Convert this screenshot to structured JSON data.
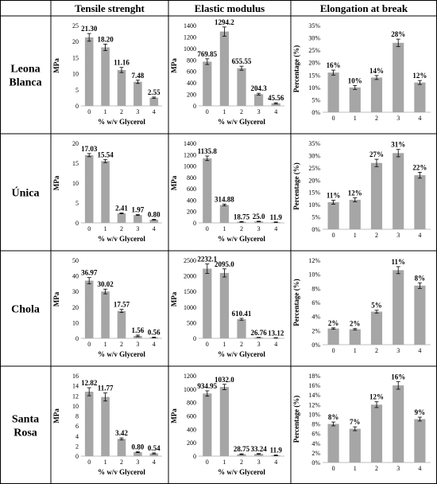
{
  "column_headers": [
    "Tensile strenght",
    "Elastic modulus",
    "Elongation at break"
  ],
  "row_labels": [
    [
      "Leona",
      "Blanca"
    ],
    [
      "Única"
    ],
    [
      "Chola"
    ],
    [
      "Santa",
      "Rosa"
    ]
  ],
  "colors": {
    "bar": "#a6a6a6",
    "border": "#000000"
  },
  "chart_data": [
    {
      "type": "bar",
      "title": "",
      "xlabel": "% w/v Glycerol",
      "ylabel": "MPa",
      "categories": [
        "0",
        "1",
        "2",
        "3",
        "4"
      ],
      "values": [
        21.3,
        18.2,
        11.16,
        7.48,
        2.55
      ],
      "labels": [
        "21.30",
        "18.20",
        "11.16",
        "7.48",
        "2.55"
      ],
      "errors": [
        1.2,
        1.0,
        0.8,
        0.5,
        0.2
      ],
      "ylim": [
        0,
        25
      ],
      "ticks": [
        0,
        5,
        10,
        15,
        20,
        25
      ],
      "tick_labels": [
        "0",
        "5",
        "10",
        "15",
        "20",
        "25"
      ]
    },
    {
      "type": "bar",
      "title": "",
      "xlabel": "% w/v Glycerol",
      "ylabel": "MPa",
      "categories": [
        "0",
        "1",
        "2",
        "3",
        "4"
      ],
      "values": [
        769.85,
        1294.2,
        655.55,
        204.3,
        45.56
      ],
      "labels": [
        "769.85",
        "1294.2",
        "655.55",
        "204.3",
        "45.56"
      ],
      "errors": [
        50,
        80,
        35,
        15,
        10
      ],
      "ylim": [
        0,
        1400
      ],
      "ticks": [
        0,
        200,
        400,
        600,
        800,
        1000,
        1200,
        1400
      ],
      "tick_labels": [
        "0",
        "200",
        "400",
        "600",
        "800",
        "1000",
        "1200",
        "1400"
      ]
    },
    {
      "type": "bar",
      "title": "",
      "xlabel": "",
      "ylabel": "Percentage (%)",
      "categories": [
        "0",
        "1",
        "2",
        "3",
        "4"
      ],
      "values": [
        16,
        10,
        14,
        28,
        12
      ],
      "labels": [
        "16%",
        "10%",
        "14%",
        "28%",
        "12%"
      ],
      "errors": [
        1,
        0.8,
        0.8,
        1.5,
        0.8
      ],
      "ylim": [
        0,
        35
      ],
      "ticks": [
        0,
        5,
        10,
        15,
        20,
        25,
        30,
        35
      ],
      "tick_labels": [
        "0%",
        "5%",
        "10%",
        "15%",
        "20%",
        "25%",
        "30%",
        "35%"
      ]
    },
    {
      "type": "bar",
      "title": "",
      "xlabel": "% w/v Glycerol",
      "ylabel": "MPa",
      "categories": [
        "0",
        "1",
        "2",
        "3",
        "4"
      ],
      "values": [
        17.03,
        15.54,
        2.41,
        1.97,
        0.8
      ],
      "labels": [
        "17.03",
        "15.54",
        "2.41",
        "1.97",
        "0.80"
      ],
      "errors": [
        0.4,
        0.4,
        0.1,
        0.1,
        0.1
      ],
      "ylim": [
        0,
        20
      ],
      "ticks": [
        0,
        5,
        10,
        15,
        20
      ],
      "tick_labels": [
        "0",
        "5",
        "10",
        "15",
        "20"
      ]
    },
    {
      "type": "bar",
      "title": "",
      "xlabel": "% w/v Glycerol",
      "ylabel": "MPa",
      "categories": [
        "0",
        "1",
        "2",
        "3",
        "4"
      ],
      "values": [
        1135.8,
        314.88,
        18.75,
        25.0,
        11.9
      ],
      "labels": [
        "1135.8",
        "314.88",
        "18.75",
        "25.0",
        "11.9"
      ],
      "errors": [
        40,
        15,
        5,
        5,
        5
      ],
      "ylim": [
        0,
        1400
      ],
      "ticks": [
        0,
        200,
        400,
        600,
        800,
        1000,
        1200,
        1400
      ],
      "tick_labels": [
        "0",
        "200",
        "400",
        "600",
        "800",
        "1000",
        "1200",
        "1400"
      ]
    },
    {
      "type": "bar",
      "title": "",
      "xlabel": "",
      "ylabel": "Percentage (%)",
      "categories": [
        "0",
        "1",
        "2",
        "3",
        "4"
      ],
      "values": [
        11,
        12,
        27,
        31,
        22
      ],
      "labels": [
        "11%",
        "12%",
        "27%",
        "31%",
        "22%"
      ],
      "errors": [
        0.8,
        0.8,
        1.5,
        1.5,
        1.2
      ],
      "ylim": [
        0,
        35
      ],
      "ticks": [
        0,
        5,
        10,
        15,
        20,
        25,
        30,
        35
      ],
      "tick_labels": [
        "0%",
        "5%",
        "10%",
        "15%",
        "20%",
        "25%",
        "30%",
        "35%"
      ]
    },
    {
      "type": "bar",
      "title": "",
      "xlabel": "% w/v Glycerol",
      "ylabel": "MPa",
      "categories": [
        "0",
        "1",
        "2",
        "3",
        "4"
      ],
      "values": [
        36.97,
        30.02,
        17.57,
        1.56,
        0.56
      ],
      "labels": [
        "36.97",
        "30.02",
        "17.57",
        "1.56",
        "0.56"
      ],
      "errors": [
        2,
        1.5,
        1,
        0.5,
        0.2
      ],
      "ylim": [
        0,
        50
      ],
      "ticks": [
        0,
        10,
        20,
        30,
        40,
        50
      ],
      "tick_labels": [
        "0",
        "10",
        "20",
        "30",
        "40",
        "50"
      ]
    },
    {
      "type": "bar",
      "title": "",
      "xlabel": "% w/v Glycerol",
      "ylabel": "MPa",
      "categories": [
        "0",
        "1",
        "2",
        "3",
        "4"
      ],
      "values": [
        2232.1,
        2095.0,
        610.41,
        26.76,
        13.12
      ],
      "labels": [
        "2232.1",
        "2095.0",
        "610.41",
        "26.76",
        "13.12"
      ],
      "errors": [
        150,
        130,
        30,
        5,
        5
      ],
      "ylim": [
        0,
        2500
      ],
      "ticks": [
        0,
        500,
        1000,
        1500,
        2000,
        2500
      ],
      "tick_labels": [
        "0",
        "500",
        "1000",
        "1500",
        "2000",
        "2500"
      ]
    },
    {
      "type": "bar",
      "title": "",
      "xlabel": "",
      "ylabel": "Percentage (%)",
      "categories": [
        "0",
        "1",
        "2",
        "3",
        "4"
      ],
      "values": [
        2,
        2,
        5,
        11,
        8
      ],
      "labels": [
        "2%",
        "2%",
        "5%",
        "11%",
        "8%"
      ],
      "values_precise": [
        2.3,
        2.2,
        4.7,
        10.6,
        8.4
      ],
      "errors": [
        0.1,
        0.1,
        0.2,
        0.5,
        0.4
      ],
      "ylim": [
        0,
        12
      ],
      "ticks": [
        0,
        2,
        4,
        6,
        8,
        10,
        12
      ],
      "tick_labels": [
        "0%",
        "2%",
        "4%",
        "6%",
        "8%",
        "10%",
        "12%"
      ]
    },
    {
      "type": "bar",
      "title": "",
      "xlabel": "% w/v Glycerol",
      "ylabel": "MPa",
      "categories": [
        "0",
        "1",
        "2",
        "3",
        "4"
      ],
      "values": [
        12.82,
        11.77,
        3.42,
        0.8,
        0.54
      ],
      "labels": [
        "12.82",
        "11.77",
        "3.42",
        "0.80",
        "0.54"
      ],
      "errors": [
        0.8,
        0.8,
        0.2,
        0.1,
        0.1
      ],
      "ylim": [
        0,
        16
      ],
      "ticks": [
        0,
        2,
        4,
        6,
        8,
        10,
        12,
        14,
        16
      ],
      "tick_labels": [
        "0",
        "2",
        "4",
        "6",
        "8",
        "10",
        "12",
        "14",
        "16"
      ]
    },
    {
      "type": "bar",
      "title": "",
      "xlabel": "% w/v Glycerol",
      "ylabel": "MPa",
      "categories": [
        "0",
        "1",
        "2",
        "3",
        "4"
      ],
      "values": [
        934.95,
        1032.0,
        28.75,
        33.24,
        11.9
      ],
      "labels": [
        "934.95",
        "1032.0",
        "28.75",
        "33.24",
        "11.9"
      ],
      "errors": [
        40,
        40,
        5,
        5,
        5
      ],
      "ylim": [
        0,
        1200
      ],
      "ticks": [
        0,
        200,
        400,
        600,
        800,
        1000,
        1200
      ],
      "tick_labels": [
        "0",
        "200",
        "400",
        "600",
        "800",
        "1000",
        "1200"
      ]
    },
    {
      "type": "bar",
      "title": "",
      "xlabel": "",
      "ylabel": "Percentage (%)",
      "categories": [
        "0",
        "1",
        "2",
        "3",
        "4"
      ],
      "values": [
        8,
        7,
        12,
        16,
        9
      ],
      "labels": [
        "8%",
        "7%",
        "12%",
        "16%",
        "9%"
      ],
      "errors": [
        0.4,
        0.4,
        0.6,
        0.8,
        0.4
      ],
      "ylim": [
        0,
        18
      ],
      "ticks": [
        0,
        2,
        4,
        6,
        8,
        10,
        12,
        14,
        16,
        18
      ],
      "tick_labels": [
        "0%",
        "2%",
        "4%",
        "6%",
        "8%",
        "10%",
        "12%",
        "14%",
        "16%",
        "18%"
      ]
    }
  ]
}
